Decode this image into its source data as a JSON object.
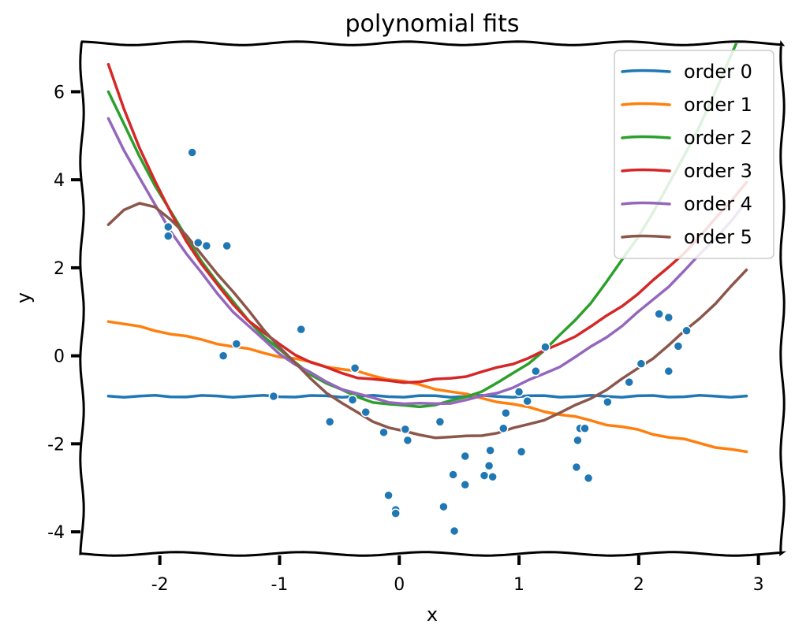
{
  "chart_data": {
    "type": "scatter",
    "title": "polynomial fits",
    "xlabel": "x",
    "ylabel": "y",
    "xlim": [
      -2.65,
      3.2
    ],
    "ylim": [
      -4.5,
      7.1
    ],
    "xticks": [
      -2,
      -1,
      0,
      1,
      2,
      3
    ],
    "yticks": [
      -4,
      -2,
      0,
      2,
      4,
      6
    ],
    "xtick_labels": [
      "-2",
      "-1",
      "0",
      "1",
      "2",
      "3"
    ],
    "ytick_labels": [
      "-4",
      "-2",
      "0",
      "2",
      "4",
      "6"
    ],
    "grid": false,
    "legend_position": "top-right",
    "style": "xkcd",
    "points": {
      "color": "#1f77b4",
      "x": [
        -1.93,
        -1.93,
        -1.73,
        -1.68,
        -1.61,
        -1.47,
        -1.44,
        -1.36,
        -1.05,
        -0.82,
        -0.58,
        -0.39,
        -0.37,
        -0.28,
        -0.13,
        -0.09,
        -0.03,
        -0.03,
        0.05,
        0.07,
        0.34,
        0.37,
        0.45,
        0.46,
        0.55,
        0.55,
        0.71,
        0.75,
        0.76,
        0.78,
        0.87,
        0.89,
        1.0,
        1.02,
        1.07,
        1.14,
        1.22,
        1.48,
        1.49,
        1.51,
        1.55,
        1.58,
        1.74,
        1.92,
        2.02,
        2.17,
        2.25,
        2.25,
        2.33,
        2.4
      ],
      "y": [
        2.72,
        2.93,
        4.62,
        2.57,
        2.5,
        0.0,
        2.5,
        0.27,
        -0.92,
        0.6,
        -1.5,
        -1.0,
        -0.28,
        -1.28,
        -1.74,
        -3.17,
        -3.5,
        -3.58,
        -1.67,
        -1.92,
        -1.5,
        -3.43,
        -2.7,
        -3.98,
        -2.28,
        -2.93,
        -2.72,
        -2.5,
        -2.15,
        -2.75,
        -1.65,
        -1.3,
        -0.82,
        -2.18,
        -1.03,
        -0.35,
        0.2,
        -2.53,
        -1.92,
        -1.65,
        -1.65,
        -2.78,
        -1.05,
        -0.6,
        -0.18,
        0.95,
        -0.35,
        0.87,
        0.22,
        0.57
      ]
    },
    "x": [
      -2.43,
      -2.3,
      -2.17,
      -2.04,
      -1.91,
      -1.78,
      -1.65,
      -1.52,
      -1.39,
      -1.26,
      -1.13,
      -1.0,
      -0.87,
      -0.74,
      -0.61,
      -0.48,
      -0.35,
      -0.22,
      -0.09,
      0.04,
      0.17,
      0.3,
      0.43,
      0.56,
      0.69,
      0.82,
      0.95,
      1.08,
      1.21,
      1.34,
      1.47,
      1.6,
      1.73,
      1.86,
      1.99,
      2.12,
      2.25,
      2.38,
      2.51,
      2.64,
      2.77,
      2.9
    ],
    "series": [
      {
        "name": "order 0",
        "color": "#1f77b4",
        "values": [
          -0.92,
          -0.92,
          -0.92,
          -0.92,
          -0.92,
          -0.92,
          -0.92,
          -0.92,
          -0.92,
          -0.92,
          -0.92,
          -0.92,
          -0.92,
          -0.92,
          -0.92,
          -0.92,
          -0.92,
          -0.92,
          -0.92,
          -0.92,
          -0.92,
          -0.92,
          -0.92,
          -0.92,
          -0.92,
          -0.92,
          -0.92,
          -0.92,
          -0.92,
          -0.92,
          -0.92,
          -0.92,
          -0.92,
          -0.92,
          -0.92,
          -0.92,
          -0.92,
          -0.92,
          -0.92,
          -0.92,
          -0.92,
          -0.92
        ]
      },
      {
        "name": "order 1",
        "color": "#ff7f0e",
        "values": [
          0.8,
          0.72,
          0.65,
          0.58,
          0.51,
          0.43,
          0.36,
          0.29,
          0.21,
          0.14,
          0.07,
          -0.01,
          -0.08,
          -0.15,
          -0.23,
          -0.3,
          -0.37,
          -0.45,
          -0.52,
          -0.59,
          -0.67,
          -0.74,
          -0.81,
          -0.89,
          -0.96,
          -1.03,
          -1.11,
          -1.18,
          -1.25,
          -1.33,
          -1.4,
          -1.47,
          -1.55,
          -1.62,
          -1.69,
          -1.77,
          -1.84,
          -1.91,
          -1.99,
          -2.06,
          -2.13,
          -2.2
        ]
      },
      {
        "name": "order 2",
        "color": "#2ca02c",
        "values": [
          6.0,
          5.25,
          4.54,
          3.88,
          3.27,
          2.69,
          2.16,
          1.67,
          1.22,
          0.81,
          0.45,
          0.13,
          -0.16,
          -0.41,
          -0.62,
          -0.79,
          -0.93,
          -1.04,
          -1.11,
          -1.14,
          -1.14,
          -1.11,
          -1.04,
          -0.93,
          -0.79,
          -0.62,
          -0.41,
          -0.16,
          0.13,
          0.45,
          0.81,
          1.22,
          1.67,
          2.16,
          2.69,
          3.27,
          3.88,
          4.54,
          5.25,
          6.0,
          6.8,
          7.64
        ]
      },
      {
        "name": "order 3",
        "color": "#d62728",
        "values": [
          6.6,
          5.62,
          4.74,
          3.95,
          3.25,
          2.63,
          2.08,
          1.6,
          1.18,
          0.82,
          0.51,
          0.25,
          0.04,
          -0.14,
          -0.28,
          -0.39,
          -0.48,
          -0.54,
          -0.58,
          -0.59,
          -0.58,
          -0.55,
          -0.51,
          -0.45,
          -0.37,
          -0.28,
          -0.17,
          -0.04,
          0.1,
          0.27,
          0.46,
          0.66,
          0.89,
          1.14,
          1.41,
          1.7,
          2.01,
          2.35,
          2.71,
          3.1,
          3.52,
          3.96
        ]
      },
      {
        "name": "order 4",
        "color": "#9467bd",
        "values": [
          5.4,
          4.69,
          4.03,
          3.42,
          2.85,
          2.33,
          1.86,
          1.42,
          1.02,
          0.67,
          0.35,
          0.06,
          -0.19,
          -0.4,
          -0.59,
          -0.74,
          -0.87,
          -0.97,
          -1.04,
          -1.08,
          -1.1,
          -1.09,
          -1.06,
          -1.01,
          -0.93,
          -0.83,
          -0.71,
          -0.57,
          -0.41,
          -0.23,
          -0.03,
          0.19,
          0.43,
          0.69,
          0.97,
          1.27,
          1.59,
          1.93,
          2.29,
          2.67,
          3.07,
          3.49
        ]
      },
      {
        "name": "order 5",
        "color": "#8c564b",
        "values": [
          3.0,
          3.3,
          3.45,
          3.4,
          3.1,
          2.72,
          2.3,
          1.88,
          1.45,
          1.02,
          0.6,
          0.2,
          -0.18,
          -0.52,
          -0.82,
          -1.08,
          -1.3,
          -1.48,
          -1.62,
          -1.73,
          -1.8,
          -1.84,
          -1.85,
          -1.84,
          -1.8,
          -1.74,
          -1.66,
          -1.56,
          -1.44,
          -1.3,
          -1.14,
          -0.96,
          -0.76,
          -0.54,
          -0.3,
          -0.04,
          0.24,
          0.54,
          0.86,
          1.2,
          1.56,
          1.94
        ]
      }
    ]
  }
}
